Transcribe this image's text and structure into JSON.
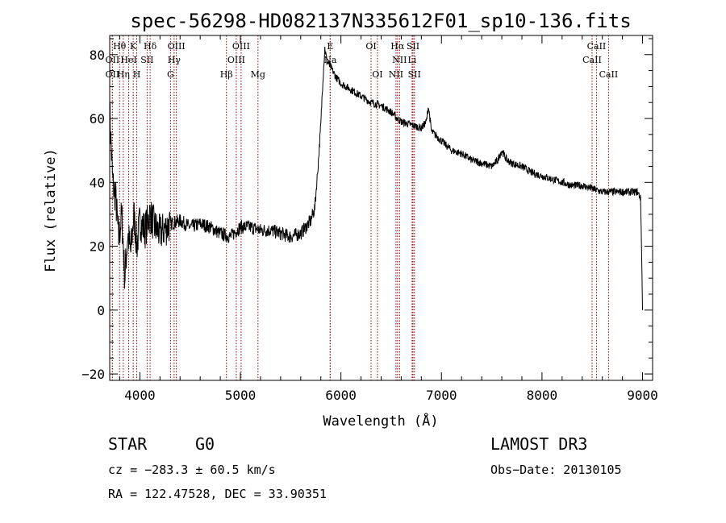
{
  "chart_data": {
    "type": "line",
    "title": "spec-56298-HD082137N335612F01_sp10-136.fits",
    "xlabel": "Wavelength (Å)",
    "ylabel": "Flux (relative)",
    "xlim": [
      3700,
      9100
    ],
    "ylim": [
      -22,
      86
    ],
    "xticks": [
      4000,
      5000,
      6000,
      7000,
      8000,
      9000
    ],
    "yticks": [
      -20,
      0,
      20,
      40,
      60,
      80
    ],
    "grid": false,
    "series": [
      {
        "name": "flux",
        "x": [
          3700,
          3730,
          3760,
          3790,
          3820,
          3850,
          3880,
          3910,
          3940,
          3970,
          4000,
          4050,
          4100,
          4150,
          4200,
          4300,
          4400,
          4500,
          4600,
          4700,
          4800,
          4900,
          5000,
          5100,
          5200,
          5300,
          5400,
          5500,
          5600,
          5650,
          5700,
          5740,
          5770,
          5800,
          5820,
          5840,
          5860,
          5880,
          5900,
          5950,
          6000,
          6100,
          6200,
          6300,
          6400,
          6500,
          6560,
          6600,
          6700,
          6800,
          6850,
          6870,
          6900,
          7000,
          7100,
          7200,
          7300,
          7400,
          7500,
          7560,
          7600,
          7650,
          7700,
          7800,
          7900,
          8000,
          8100,
          8200,
          8300,
          8400,
          8500,
          8600,
          8700,
          8800,
          8900,
          8950,
          8980,
          8990,
          9000
        ],
        "values": [
          62,
          40,
          35,
          22,
          30,
          10,
          24,
          18,
          30,
          20,
          28,
          25,
          30,
          26,
          24,
          27,
          28,
          26,
          27,
          26,
          24,
          23,
          26,
          26,
          25,
          25,
          24,
          23,
          24,
          26,
          28,
          32,
          44,
          58,
          72,
          82,
          78,
          77,
          76,
          73,
          71,
          69,
          67,
          65,
          64,
          62,
          60,
          59,
          58,
          57,
          59,
          64,
          56,
          53,
          50,
          49,
          47,
          46,
          45,
          47,
          50,
          47,
          46,
          45,
          43,
          42,
          41,
          40,
          39,
          39,
          38,
          37,
          37,
          37,
          37,
          37,
          35,
          20,
          0
        ]
      }
    ],
    "emission_lines": [
      {
        "label": "Hθ",
        "wavelength": 3798,
        "row": 1
      },
      {
        "label": "OII",
        "wavelength": 3727,
        "row": 2
      },
      {
        "label": "OII",
        "wavelength": 3727,
        "row": 3
      },
      {
        "label": "Hη",
        "wavelength": 3835,
        "row": 3
      },
      {
        "label": "K",
        "wavelength": 3934,
        "row": 1
      },
      {
        "label": "HeI",
        "wavelength": 3889,
        "row": 2
      },
      {
        "label": "H",
        "wavelength": 3969,
        "row": 3
      },
      {
        "label": "SII",
        "wavelength": 4072,
        "row": 2
      },
      {
        "label": "Hδ",
        "wavelength": 4102,
        "row": 1
      },
      {
        "label": "OIII",
        "wavelength": 4363,
        "row": 1
      },
      {
        "label": "Hγ",
        "wavelength": 4341,
        "row": 2
      },
      {
        "label": "G",
        "wavelength": 4305,
        "row": 3
      },
      {
        "label": "OIII",
        "wavelength": 5007,
        "row": 1
      },
      {
        "label": "OIII",
        "wavelength": 4959,
        "row": 2
      },
      {
        "label": "Hβ",
        "wavelength": 4861,
        "row": 3
      },
      {
        "label": "Mg",
        "wavelength": 5175,
        "row": 3
      },
      {
        "label": "E",
        "wavelength": 5893,
        "row": 1
      },
      {
        "label": "Na",
        "wavelength": 5893,
        "row": 2
      },
      {
        "label": "OI",
        "wavelength": 6300,
        "row": 1
      },
      {
        "label": "OI",
        "wavelength": 6363,
        "row": 3
      },
      {
        "label": "Hα",
        "wavelength": 6563,
        "row": 1
      },
      {
        "label": "SII",
        "wavelength": 6717,
        "row": 1
      },
      {
        "label": "NII",
        "wavelength": 6583,
        "row": 2
      },
      {
        "label": "Li",
        "wavelength": 6708,
        "row": 2
      },
      {
        "label": "NII",
        "wavelength": 6548,
        "row": 3
      },
      {
        "label": "SII",
        "wavelength": 6731,
        "row": 3
      },
      {
        "label": "CaII",
        "wavelength": 8542,
        "row": 1
      },
      {
        "label": "CaII",
        "wavelength": 8498,
        "row": 2
      },
      {
        "label": "CaII",
        "wavelength": 8662,
        "row": 3
      }
    ],
    "line_colors": {
      "spectrum": "#000000",
      "marker": "#8b0000"
    }
  },
  "info": {
    "class_label": "STAR",
    "subclass": "G0",
    "survey": "LAMOST DR3",
    "cz": "cz = −283.3 ± 60.5 km/s",
    "obs_date": "Obs−Date: 20130105",
    "coords": "RA = 122.47528, DEC =  33.90351"
  }
}
